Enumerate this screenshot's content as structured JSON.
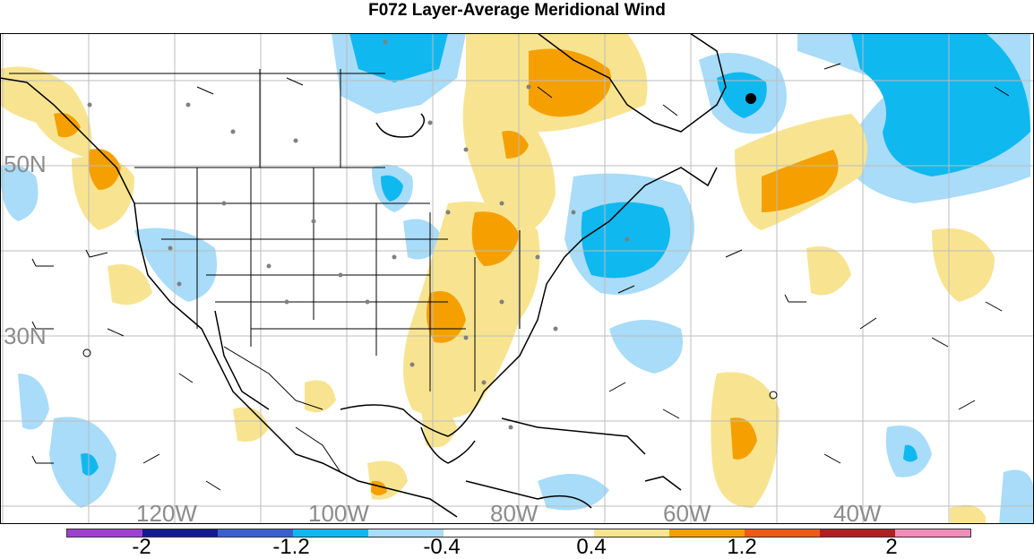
{
  "title": "F072 Layer-Average Meridional Wind",
  "lat_labels": [
    "50N",
    "30N"
  ],
  "lon_labels": [
    "120W",
    "100W",
    "80W",
    "60W",
    "40W"
  ],
  "colorbar": {
    "colors": [
      "#a040d0",
      "#101a90",
      "#3a60d0",
      "#10b8f0",
      "#a8dcf8",
      "#ffffff",
      "#ffffff",
      "#f8e490",
      "#f5a000",
      "#f05818",
      "#b02020",
      "#f08cb8"
    ],
    "tick_labels": [
      "-2",
      "-1.2",
      "-0.4",
      "0.4",
      "1.2",
      "2"
    ]
  },
  "colors": {
    "grid": "#bdbdbd",
    "coast": "#000000",
    "light_blue": "#a8dcf8",
    "blue": "#10b8f0",
    "light_yellow": "#f8e490",
    "orange": "#f5a000",
    "station": "#808080"
  }
}
